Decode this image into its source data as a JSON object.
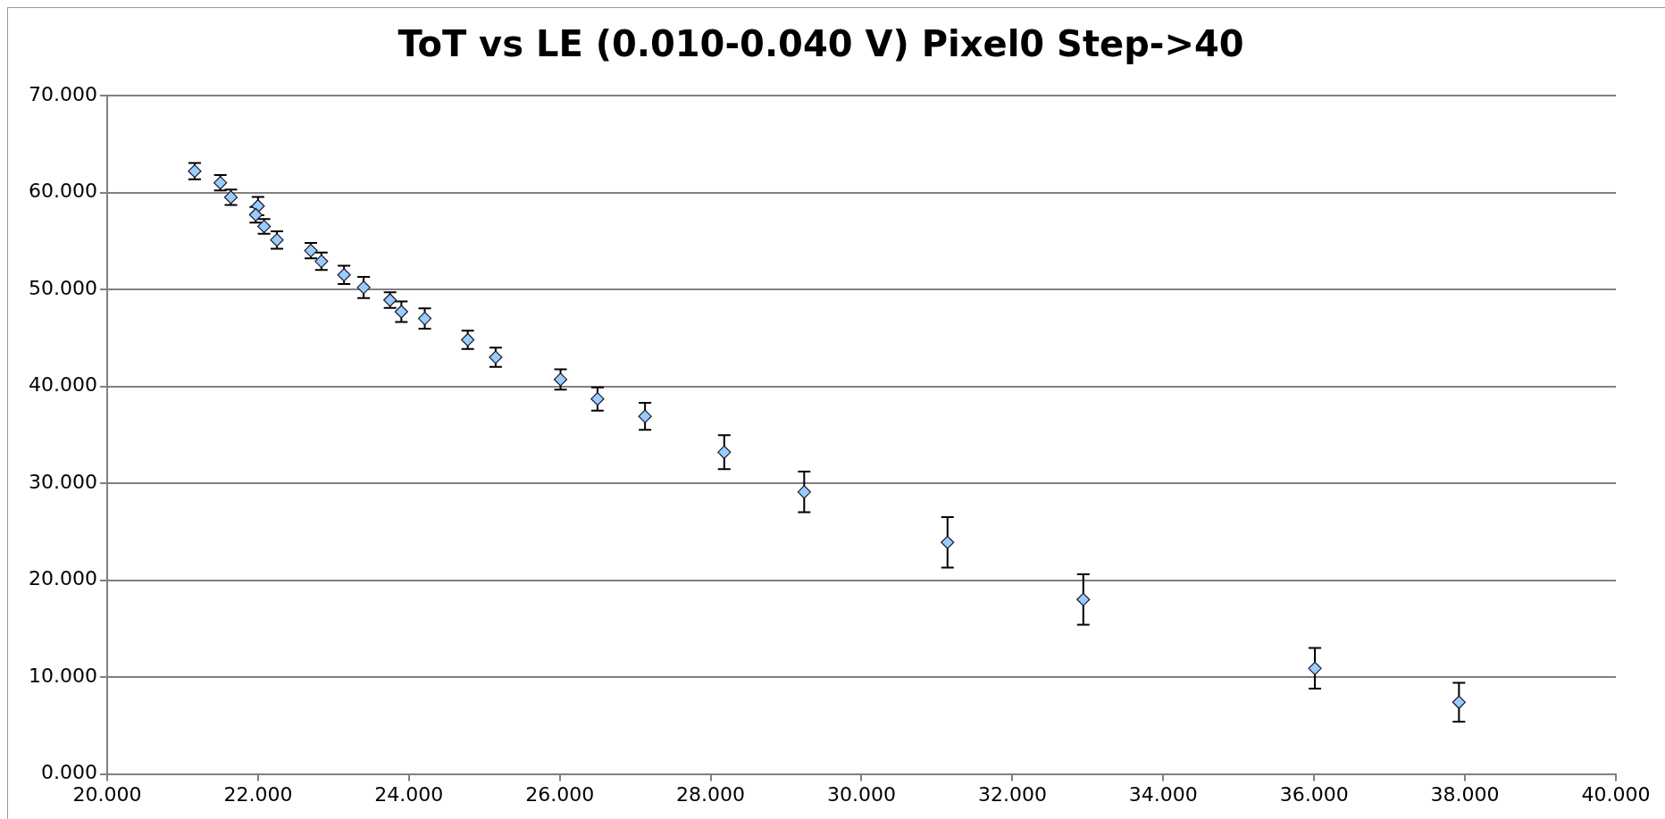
{
  "chart_data": {
    "type": "scatter",
    "title": "ToT vs LE (0.010-0.040 V) Pixel0 Step->40",
    "x": [
      21.16,
      21.5,
      21.64,
      22.0,
      21.97,
      22.08,
      22.25,
      22.7,
      22.84,
      23.14,
      23.4,
      23.75,
      23.9,
      24.21,
      24.78,
      25.15,
      26.01,
      26.5,
      27.13,
      28.18,
      29.24,
      31.14,
      32.94,
      36.01,
      37.92
    ],
    "series": [
      {
        "color": "#99ccff",
        "values": [
          62.2,
          61.0,
          59.5,
          58.6,
          57.7,
          56.5,
          55.1,
          54.0,
          52.9,
          51.5,
          50.2,
          48.9,
          47.7,
          47.0,
          44.8,
          43.0,
          40.7,
          38.7,
          36.9,
          33.2,
          29.1,
          23.9,
          18.0,
          10.9,
          7.4
        ],
        "errors": [
          0.85,
          0.8,
          0.8,
          0.95,
          0.8,
          0.75,
          0.9,
          0.8,
          0.9,
          0.95,
          1.1,
          0.8,
          1.05,
          1.05,
          0.95,
          1.0,
          1.05,
          1.2,
          1.4,
          1.75,
          2.1,
          2.6,
          2.6,
          2.1,
          2.0
        ]
      }
    ],
    "xlim": [
      20,
      40
    ],
    "xticks": [
      {
        "value": 20,
        "label": "20.000"
      },
      {
        "value": 22,
        "label": "22.000"
      },
      {
        "value": 24,
        "label": "24.000"
      },
      {
        "value": 26,
        "label": "26.000"
      },
      {
        "value": 28,
        "label": "28.000"
      },
      {
        "value": 30,
        "label": "30.000"
      },
      {
        "value": 32,
        "label": "32.000"
      },
      {
        "value": 34,
        "label": "34.000"
      },
      {
        "value": 36,
        "label": "36.000"
      },
      {
        "value": 38,
        "label": "38.000"
      },
      {
        "value": 40,
        "label": "40.000"
      }
    ],
    "ylim": [
      0,
      70
    ],
    "yticks": [
      {
        "value": 0,
        "label": "0.000"
      },
      {
        "value": 10,
        "label": "10.000"
      },
      {
        "value": 20,
        "label": "20.000"
      },
      {
        "value": 30,
        "label": "30.000"
      },
      {
        "value": 40,
        "label": "40.000"
      },
      {
        "value": 50,
        "label": "50.000"
      },
      {
        "value": 60,
        "label": "60.000"
      },
      {
        "value": 70,
        "label": "70.000"
      }
    ],
    "grid": "y",
    "legend": false,
    "marker": "diamond"
  }
}
